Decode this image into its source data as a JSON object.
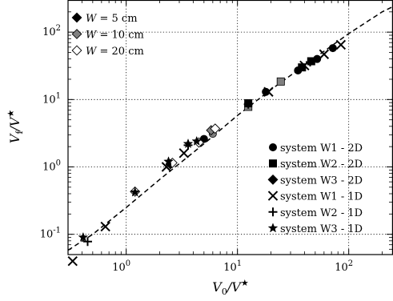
{
  "chart_data": {
    "type": "scatter",
    "title": "",
    "xlabel": "V_0/V^★",
    "ylabel": "V_f/V^★",
    "x_scale": "log",
    "y_scale": "log",
    "xlim": [
      0.3,
      250
    ],
    "ylim": [
      0.05,
      300
    ],
    "grid": true,
    "grid_style": "dotted",
    "x_ticks": [
      {
        "value": 1,
        "base": "10",
        "exp": "0"
      },
      {
        "value": 10,
        "base": "10",
        "exp": "1"
      },
      {
        "value": 100,
        "base": "10",
        "exp": "2"
      }
    ],
    "y_ticks": [
      {
        "value": 0.1,
        "base": "10",
        "exp": "-1"
      },
      {
        "value": 1,
        "base": "10",
        "exp": "0"
      },
      {
        "value": 10,
        "base": "10",
        "exp": "1"
      },
      {
        "value": 100,
        "base": "10",
        "exp": "2"
      }
    ],
    "width_legend": {
      "placement": "top-left",
      "entries": [
        {
          "symbol": "W",
          "eq": " = 5  cm",
          "color": "#000000"
        },
        {
          "symbol": "W",
          "eq": " = 10  cm",
          "color": "#808080"
        },
        {
          "symbol": "W",
          "eq": " = 20  cm",
          "color": "#ffffff"
        }
      ]
    },
    "system_legend": {
      "placement": "bottom-right",
      "entries": [
        {
          "marker": "circle",
          "label": "system W1 - 2D"
        },
        {
          "marker": "square",
          "label": "system W2 - 2D"
        },
        {
          "marker": "diamond",
          "label": "system W3 - 2D"
        },
        {
          "marker": "x",
          "label": "system W1 - 1D"
        },
        {
          "marker": "plus",
          "label": "system W2 - 1D"
        },
        {
          "marker": "star",
          "label": "system W3 - 1D"
        }
      ]
    },
    "fit_line": {
      "style": "dashed",
      "x": [
        0.3,
        0.5,
        1,
        2,
        5,
        10,
        20,
        50,
        100,
        200,
        250
      ],
      "y": [
        0.058,
        0.1,
        0.25,
        0.65,
        2.2,
        5.8,
        14,
        42,
        95,
        200,
        240
      ]
    },
    "series": [
      {
        "marker": "circle",
        "points": [
          {
            "x": 5.0,
            "y": 2.6,
            "color": "#000000"
          },
          {
            "x": 6.0,
            "y": 3.1,
            "color": "#808080"
          },
          {
            "x": 18,
            "y": 13,
            "color": "#000000"
          },
          {
            "x": 35,
            "y": 27,
            "color": "#000000"
          },
          {
            "x": 52,
            "y": 40,
            "color": "#000000"
          },
          {
            "x": 72,
            "y": 58,
            "color": "#000000"
          }
        ]
      },
      {
        "marker": "square",
        "points": [
          {
            "x": 12.5,
            "y": 7.8,
            "color": "#808080"
          },
          {
            "x": 12.5,
            "y": 8.8,
            "color": "#000000"
          },
          {
            "x": 24.5,
            "y": 18.5,
            "color": "#808080"
          },
          {
            "x": 38,
            "y": 30,
            "color": "#000000"
          },
          {
            "x": 46,
            "y": 37,
            "color": "#000000"
          }
        ]
      },
      {
        "marker": "diamond",
        "points": [
          {
            "x": 1.2,
            "y": 0.43,
            "color": "#ffffff"
          },
          {
            "x": 2.5,
            "y": 1.1,
            "color": "#000000"
          },
          {
            "x": 2.6,
            "y": 1.15,
            "color": "#ffffff"
          },
          {
            "x": 4.5,
            "y": 2.3,
            "color": "#ffffff"
          },
          {
            "x": 5.8,
            "y": 3.5,
            "color": "#808080"
          },
          {
            "x": 6.3,
            "y": 3.7,
            "color": "#ffffff"
          }
        ]
      },
      {
        "marker": "x",
        "points": [
          {
            "x": 0.33,
            "y": 0.04
          },
          {
            "x": 0.65,
            "y": 0.13
          },
          {
            "x": 2.3,
            "y": 1.0
          },
          {
            "x": 3.3,
            "y": 1.6
          },
          {
            "x": 19,
            "y": 13
          },
          {
            "x": 40,
            "y": 32
          },
          {
            "x": 60,
            "y": 47
          },
          {
            "x": 85,
            "y": 65
          }
        ]
      },
      {
        "marker": "plus",
        "points": [
          {
            "x": 0.45,
            "y": 0.078
          },
          {
            "x": 3.6,
            "y": 2.1
          },
          {
            "x": 12.5,
            "y": 8.5
          },
          {
            "x": 45,
            "y": 36
          }
        ]
      },
      {
        "marker": "star",
        "points": [
          {
            "x": 0.41,
            "y": 0.09
          },
          {
            "x": 1.2,
            "y": 0.42
          },
          {
            "x": 2.4,
            "y": 1.2
          },
          {
            "x": 3.6,
            "y": 2.2
          },
          {
            "x": 4.3,
            "y": 2.4
          }
        ]
      }
    ]
  }
}
